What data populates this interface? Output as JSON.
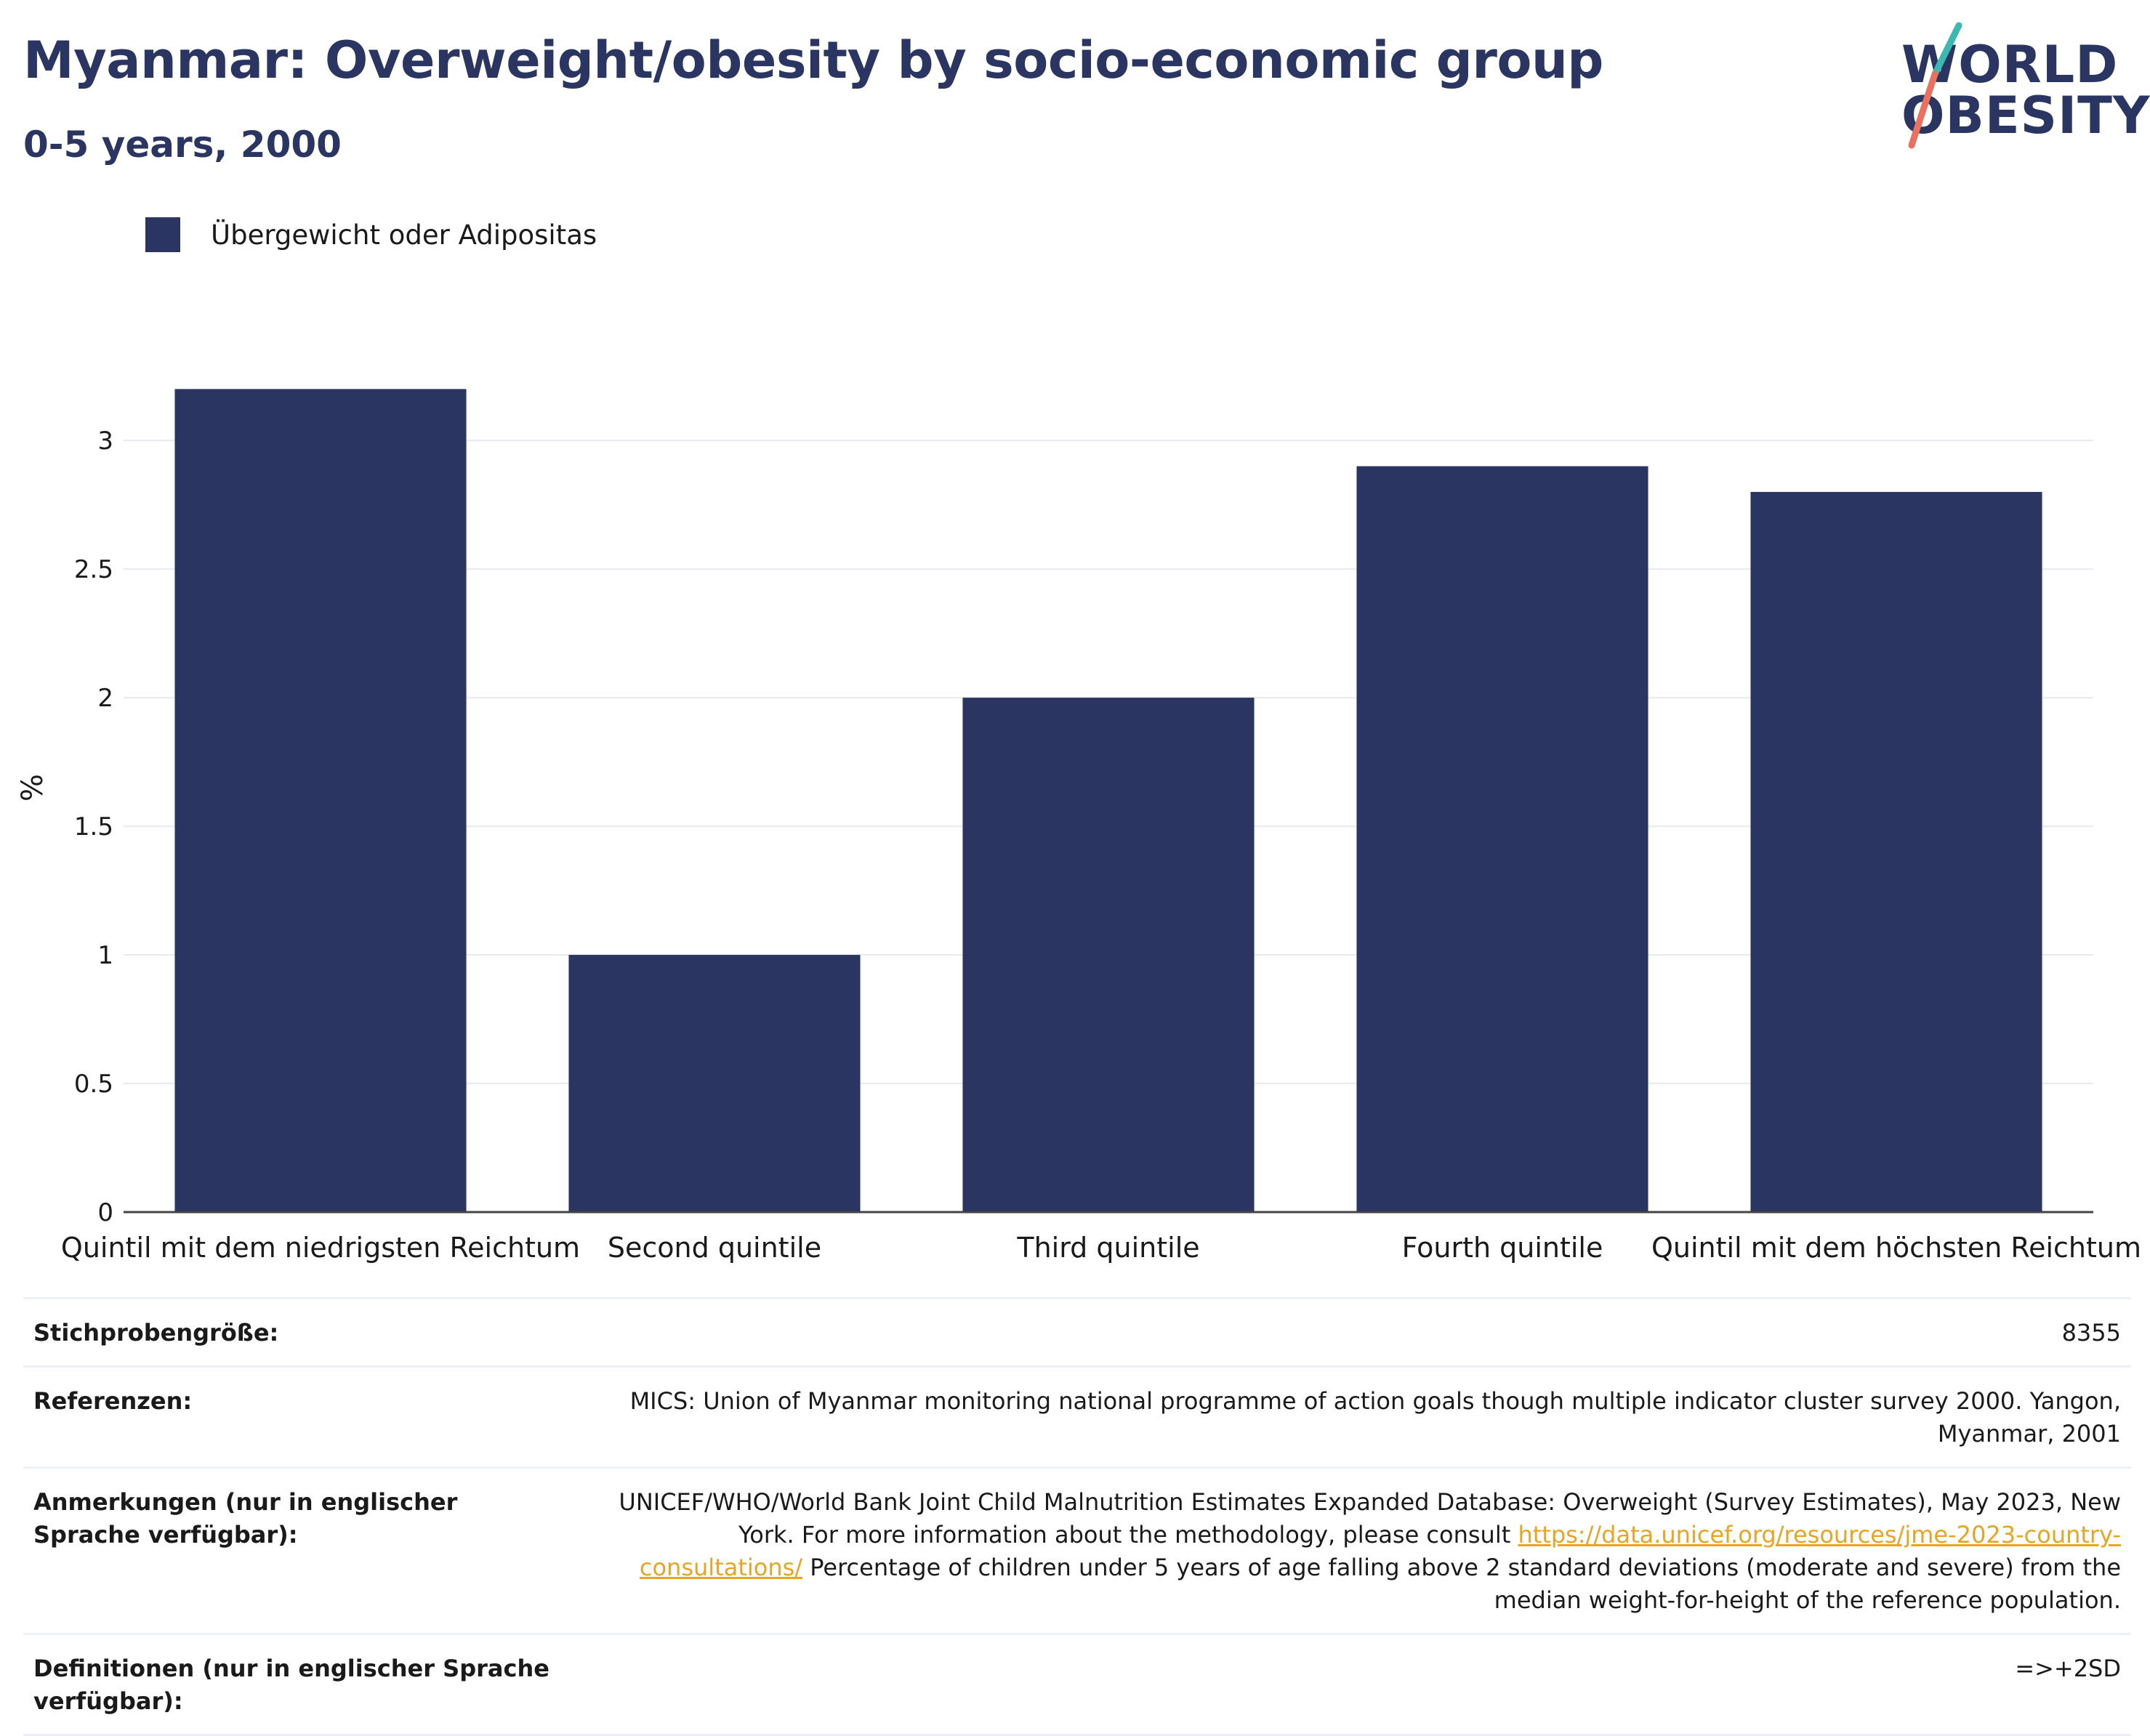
{
  "header": {
    "title": "Myanmar: Overweight/obesity by socio-economic group",
    "subtitle": "0-5 years, 2000"
  },
  "logo": {
    "line1": "WORLD",
    "line2": "OBESITY"
  },
  "legend": {
    "label": "Übergewicht oder Adipositas",
    "color": "#2b3561"
  },
  "chart_data": {
    "type": "bar",
    "categories": [
      "Quintil mit dem niedrigsten Reichtum",
      "Second quintile",
      "Third quintile",
      "Fourth quintile",
      "Quintil mit dem höchsten Reichtum"
    ],
    "series": [
      {
        "name": "Übergewicht oder Adipositas",
        "values": [
          3.2,
          1.0,
          2.0,
          2.9,
          2.8
        ],
        "color": "#2b3561"
      }
    ],
    "ylabel": "%",
    "xlabel": "",
    "ylim": [
      0,
      3.3
    ],
    "yticks": [
      "0",
      "0.5",
      "1",
      "1.5",
      "2",
      "2.5",
      "3"
    ],
    "grid": true,
    "legend_position": "top-left"
  },
  "table": {
    "sample_size": {
      "label": "Stichprobengröße:",
      "value": "8355"
    },
    "references": {
      "label": "Referenzen:",
      "value": "MICS: Union of Myanmar monitoring national programme of action goals though multiple indicator cluster survey 2000. Yangon, Myanmar, 2001"
    },
    "notes": {
      "label": "Anmerkungen (nur in englischer Sprache verfügbar):",
      "text_before": "UNICEF/WHO/World Bank Joint Child Malnutrition Estimates Expanded Database: Overweight (Survey Estimates), May 2023, New York. For more information about the methodology, please consult ",
      "link": "https://data.unicef.org/resources/jme-2023-country-consultations/",
      "text_after": " Percentage of children under 5 years of age falling above 2 standard deviations (moderate and severe) from the median weight-for-height of the reference population."
    },
    "definitions": {
      "label": "Definitionen (nur in englischer Sprache verfügbar):",
      "value": "=>+2SD"
    }
  }
}
